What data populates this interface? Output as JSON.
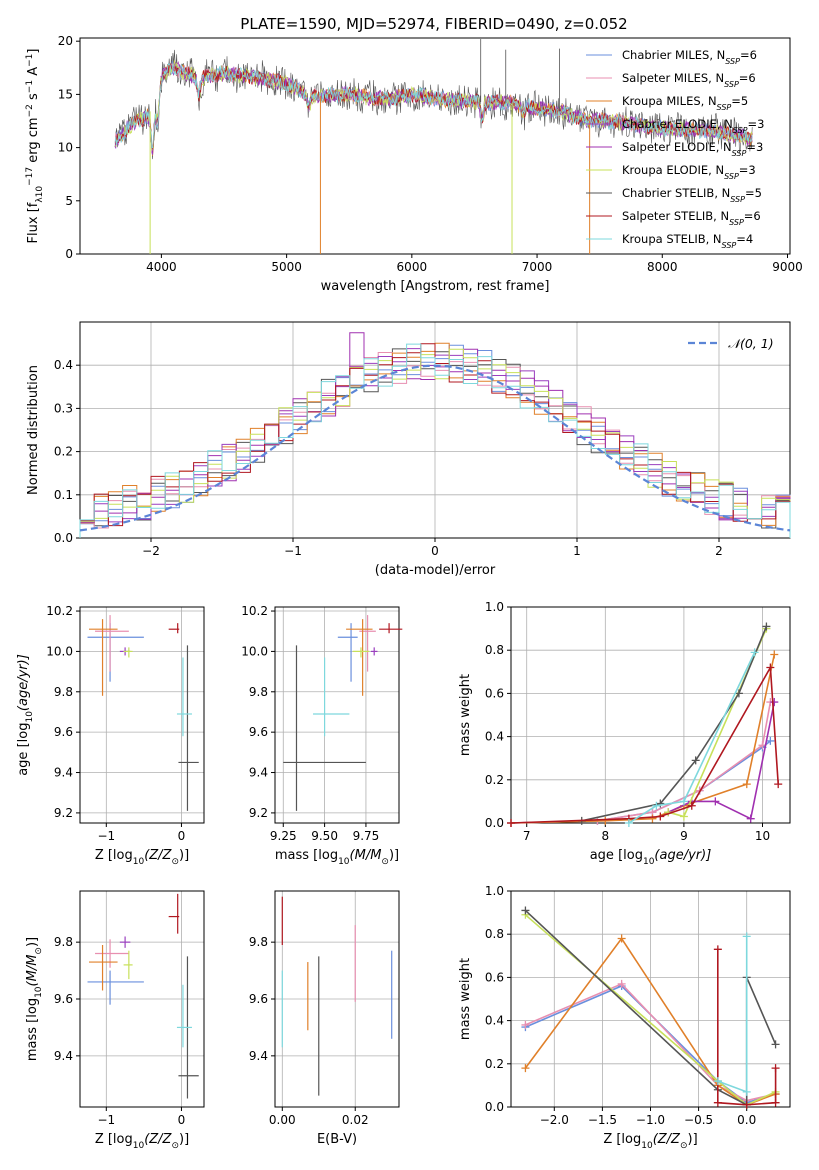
{
  "title": "PLATE=1590, MJD=52974, FIBERID=0490, z=0.052",
  "models": [
    {
      "name": "Chabrier MILES",
      "nssp": "6",
      "color": "#6a8fdd"
    },
    {
      "name": "Salpeter MILES",
      "nssp": "6",
      "color": "#e88fb0"
    },
    {
      "name": "Kroupa MILES",
      "nssp": "5",
      "color": "#e0802a"
    },
    {
      "name": "Chabrier ELODIE",
      "nssp": "3",
      "color": "#9a3fbf"
    },
    {
      "name": "Salpeter ELODIE",
      "nssp": "3",
      "color": "#a030b0"
    },
    {
      "name": "Kroupa ELODIE",
      "nssp": "3",
      "color": "#c7e05a"
    },
    {
      "name": "Chabrier STELIB",
      "nssp": "5",
      "color": "#555555"
    },
    {
      "name": "Salpeter STELIB",
      "nssp": "6",
      "color": "#b01820"
    },
    {
      "name": "Kroupa STELIB",
      "nssp": "4",
      "color": "#7ed8dd"
    }
  ],
  "chart_data": [
    {
      "id": "spectrum",
      "type": "line",
      "xlabel": "wavelength [Angstrom, rest frame]",
      "ylabel_parts": [
        "Flux [f",
        "λ",
        "10",
        "−17",
        " erg cm",
        "−2",
        " s",
        "−1",
        " A",
        "−1",
        "]"
      ],
      "xlim": [
        3350,
        9020
      ],
      "ylim": [
        0,
        20.3
      ],
      "xticks": [
        4000,
        5000,
        6000,
        7000,
        8000,
        9000
      ],
      "yticks": [
        0,
        5,
        10,
        15,
        20
      ],
      "x_range": [
        3630,
        8720
      ],
      "continuum": [
        [
          3630,
          10.5
        ],
        [
          3700,
          11.5
        ],
        [
          3800,
          12.5
        ],
        [
          3900,
          13
        ],
        [
          3950,
          15
        ],
        [
          4000,
          16.8
        ],
        [
          4100,
          17.5
        ],
        [
          4300,
          16.5
        ],
        [
          4500,
          17
        ],
        [
          4800,
          16.5
        ],
        [
          5000,
          16
        ],
        [
          5200,
          14.8
        ],
        [
          5500,
          15
        ],
        [
          5800,
          14.5
        ],
        [
          6000,
          15
        ],
        [
          6300,
          14.5
        ],
        [
          6500,
          14.3
        ],
        [
          6800,
          14.2
        ],
        [
          7000,
          13.7
        ],
        [
          7200,
          13.4
        ],
        [
          7400,
          12.5
        ],
        [
          7500,
          12.6
        ],
        [
          7700,
          12.3
        ],
        [
          8000,
          11.8
        ],
        [
          8200,
          11.7
        ],
        [
          8400,
          11.6
        ],
        [
          8720,
          10.8
        ]
      ],
      "absorption_lines": [
        [
          3930,
          4.5
        ],
        [
          3970,
          3.2
        ],
        [
          4300,
          1.5
        ],
        [
          5175,
          1.2
        ],
        [
          6560,
          1.5
        ],
        [
          6890,
          0.8
        ]
      ],
      "spikes_down": [
        {
          "x": 3910,
          "y": 0,
          "model": 5
        },
        {
          "x": 5270,
          "y": 0,
          "model": 2
        },
        {
          "x": 6800,
          "y": 0,
          "model": 5
        },
        {
          "x": 7420,
          "y": 0,
          "model": 2
        }
      ],
      "spikes_up": [
        {
          "x": 6550,
          "y": 20.2,
          "model": 6
        },
        {
          "x": 6750,
          "y": 19.2,
          "model": 6
        },
        {
          "x": 7180,
          "y": 19.3,
          "model": 6
        }
      ]
    },
    {
      "id": "residuals",
      "type": "histogram",
      "xlabel": "(data-model)/error",
      "ylabel": "Normed distribution",
      "xlim": [
        -2.5,
        2.5
      ],
      "ylim": [
        0,
        0.5
      ],
      "xticks": [
        -2,
        -1,
        0,
        1,
        2
      ],
      "yticks": [
        0.0,
        0.1,
        0.2,
        0.3,
        0.4
      ],
      "bins": {
        "start": -2.5,
        "width": 0.1,
        "count": 50
      },
      "spread": 1.05,
      "legend": "𝒩(0, 1)"
    },
    {
      "id": "age_vs_Z",
      "type": "errorbar",
      "xlabel_parts": [
        "Z [log",
        "10",
        "(Z/Z",
        "⊙",
        ")]"
      ],
      "ylabel_parts": [
        "age  [log",
        "10",
        "(age/yr)]"
      ],
      "xlim": [
        -1.35,
        0.3
      ],
      "ylim": [
        9.15,
        10.22
      ],
      "xticks": [
        -1,
        0
      ],
      "yticks": [
        9.2,
        9.4,
        9.6,
        9.8,
        10.0,
        10.2
      ],
      "points": [
        {
          "model": 0,
          "x": -0.95,
          "xerr": [
            0.3,
            0.45
          ],
          "y": 10.07,
          "yerr": [
            0.22,
            0.07
          ]
        },
        {
          "model": 1,
          "x": -0.95,
          "xerr": [
            0.2,
            0.25
          ],
          "y": 10.1,
          "yerr": [
            0.2,
            0.08
          ]
        },
        {
          "model": 2,
          "x": -1.05,
          "xerr": [
            0.18,
            0.2
          ],
          "y": 10.11,
          "yerr": [
            0.33,
            0.05
          ]
        },
        {
          "model": 3,
          "x": -0.75,
          "xerr": [
            0.07,
            0.07
          ],
          "y": 10.0,
          "yerr": [
            0.02,
            0.02
          ]
        },
        {
          "model": 5,
          "x": -0.7,
          "xerr": [
            0.07,
            0.05
          ],
          "y": 10.0,
          "yerr": [
            0.03,
            0.02
          ]
        },
        {
          "model": 6,
          "x": 0.08,
          "xerr": [
            0.12,
            0.15
          ],
          "y": 9.45,
          "yerr": [
            0.24,
            0.58
          ]
        },
        {
          "model": 7,
          "x": -0.05,
          "xerr": [
            0.12,
            0.02
          ],
          "y": 10.11,
          "yerr": [
            0.02,
            0.03
          ]
        },
        {
          "model": 8,
          "x": 0.02,
          "xerr": [
            0.08,
            0.12
          ],
          "y": 9.69,
          "yerr": [
            0.11,
            0.28
          ]
        }
      ]
    },
    {
      "id": "age_vs_mass",
      "type": "errorbar",
      "xlabel_parts": [
        "mass [log",
        "10",
        "(M/M",
        "⊙",
        ")]"
      ],
      "xlim": [
        9.2,
        9.95
      ],
      "ylim": [
        9.15,
        10.22
      ],
      "xticks": [
        9.25,
        9.5,
        9.75
      ],
      "xticklabels": [
        "9.25",
        "9.50",
        "9.75"
      ],
      "yticks": [
        9.2,
        9.4,
        9.6,
        9.8,
        10.0,
        10.2
      ],
      "points": [
        {
          "model": 0,
          "x": 9.66,
          "xerr": [
            0.08,
            0.04
          ],
          "y": 10.07,
          "yerr": [
            0.22,
            0.07
          ]
        },
        {
          "model": 1,
          "x": 9.76,
          "xerr": [
            0.05,
            0.05
          ],
          "y": 10.1,
          "yerr": [
            0.2,
            0.08
          ]
        },
        {
          "model": 2,
          "x": 9.73,
          "xerr": [
            0.1,
            0.06
          ],
          "y": 10.11,
          "yerr": [
            0.33,
            0.05
          ]
        },
        {
          "model": 3,
          "x": 9.8,
          "xerr": [
            0.02,
            0.02
          ],
          "y": 10.0,
          "yerr": [
            0.02,
            0.02
          ]
        },
        {
          "model": 5,
          "x": 9.72,
          "xerr": [
            0.05,
            0.05
          ],
          "y": 10.0,
          "yerr": [
            0.03,
            0.02
          ]
        },
        {
          "model": 6,
          "x": 9.33,
          "xerr": [
            0.08,
            0.42
          ],
          "y": 9.45,
          "yerr": [
            0.24,
            0.58
          ]
        },
        {
          "model": 7,
          "x": 9.89,
          "xerr": [
            0.06,
            0.08
          ],
          "y": 10.11,
          "yerr": [
            0.02,
            0.03
          ]
        },
        {
          "model": 8,
          "x": 9.5,
          "xerr": [
            0.07,
            0.15
          ],
          "y": 9.69,
          "yerr": [
            0.11,
            0.28
          ]
        }
      ]
    },
    {
      "id": "mass_weight_vs_age",
      "type": "line",
      "xlabel_parts": [
        "age  [log",
        "10",
        "(age/yr)]"
      ],
      "ylabel": "mass weight",
      "xlim": [
        6.8,
        10.35
      ],
      "ylim": [
        0,
        1.0
      ],
      "xticks": [
        7,
        8,
        9,
        10
      ],
      "yticks": [
        0.0,
        0.2,
        0.4,
        0.6,
        0.8,
        1.0
      ],
      "series": [
        {
          "model": 0,
          "x": [
            6.8,
            7.9,
            8.6,
            9.2,
            10.0,
            10.1
          ],
          "y": [
            0.0,
            0.01,
            0.05,
            0.15,
            0.35,
            0.38
          ]
        },
        {
          "model": 1,
          "x": [
            6.8,
            7.9,
            8.6,
            9.2,
            10.0,
            10.1
          ],
          "y": [
            0.0,
            0.01,
            0.05,
            0.15,
            0.36,
            0.56
          ]
        },
        {
          "model": 2,
          "x": [
            6.8,
            8.0,
            8.6,
            9.0,
            9.8,
            10.15
          ],
          "y": [
            0.0,
            0.01,
            0.02,
            0.08,
            0.18,
            0.78
          ]
        },
        {
          "model": 4,
          "x": [
            8.8,
            9.1,
            9.4,
            9.85,
            10.15
          ],
          "y": [
            0.05,
            0.1,
            0.1,
            0.02,
            0.56
          ]
        },
        {
          "model": 5,
          "x": [
            8.8,
            9.0,
            10.05
          ],
          "y": [
            0.05,
            0.03,
            0.9
          ]
        },
        {
          "model": 6,
          "x": [
            7.7,
            8.7,
            9.15,
            9.7,
            10.05
          ],
          "y": [
            0.01,
            0.09,
            0.29,
            0.6,
            0.91
          ]
        },
        {
          "model": 7,
          "x": [
            6.8,
            8.3,
            8.7,
            9.1,
            10.1,
            10.2
          ],
          "y": [
            0.0,
            0.02,
            0.03,
            0.08,
            0.72,
            0.18
          ]
        },
        {
          "model": 8,
          "x": [
            8.3,
            8.65,
            9.0,
            9.9
          ],
          "y": [
            0.0,
            0.08,
            0.1,
            0.79
          ]
        }
      ]
    },
    {
      "id": "mass_vs_Z",
      "type": "errorbar",
      "xlabel_parts": [
        "Z [log",
        "10",
        "(Z/Z",
        "⊙",
        ")]"
      ],
      "ylabel_parts": [
        "mass [log",
        "10",
        "(M/M",
        "⊙",
        ")]"
      ],
      "xlim": [
        -1.35,
        0.3
      ],
      "ylim": [
        9.22,
        9.98
      ],
      "xticks": [
        -1,
        0
      ],
      "yticks": [
        9.4,
        9.6,
        9.8
      ],
      "points": [
        {
          "model": 0,
          "x": -0.95,
          "xerr": [
            0.3,
            0.45
          ],
          "y": 9.66,
          "yerr": [
            0.08,
            0.04
          ]
        },
        {
          "model": 1,
          "x": -0.95,
          "xerr": [
            0.2,
            0.25
          ],
          "y": 9.76,
          "yerr": [
            0.05,
            0.05
          ]
        },
        {
          "model": 2,
          "x": -1.05,
          "xerr": [
            0.18,
            0.2
          ],
          "y": 9.73,
          "yerr": [
            0.1,
            0.06
          ]
        },
        {
          "model": 3,
          "x": -0.75,
          "xerr": [
            0.07,
            0.07
          ],
          "y": 9.8,
          "yerr": [
            0.02,
            0.02
          ]
        },
        {
          "model": 5,
          "x": -0.7,
          "xerr": [
            0.07,
            0.05
          ],
          "y": 9.72,
          "yerr": [
            0.05,
            0.05
          ]
        },
        {
          "model": 6,
          "x": 0.08,
          "xerr": [
            0.12,
            0.15
          ],
          "y": 9.33,
          "yerr": [
            0.08,
            0.42
          ]
        },
        {
          "model": 7,
          "x": -0.05,
          "xerr": [
            0.12,
            0.02
          ],
          "y": 9.89,
          "yerr": [
            0.06,
            0.08
          ]
        },
        {
          "model": 8,
          "x": 0.02,
          "xerr": [
            0.08,
            0.12
          ],
          "y": 9.5,
          "yerr": [
            0.07,
            0.15
          ]
        }
      ]
    },
    {
      "id": "mass_vs_ebv",
      "type": "errorbar",
      "xlabel": "E(B-V)",
      "xlim": [
        -0.002,
        0.032
      ],
      "ylim": [
        9.22,
        9.98
      ],
      "xticks": [
        0.0,
        0.02
      ],
      "xticklabels": [
        "0.00",
        "0.02"
      ],
      "yticks": [
        9.4,
        9.6,
        9.8
      ],
      "points": [
        {
          "model": 0,
          "x": 0.03,
          "xerr": [
            0,
            0
          ],
          "y": 9.66,
          "yerr": [
            0.2,
            0.11
          ]
        },
        {
          "model": 1,
          "x": 0.02,
          "xerr": [
            0,
            0
          ],
          "y": 9.76,
          "yerr": [
            0.17,
            0.1
          ]
        },
        {
          "model": 2,
          "x": 0.007,
          "xerr": [
            0,
            0
          ],
          "y": 9.62,
          "yerr": [
            0.13,
            0.11
          ]
        },
        {
          "model": 6,
          "x": 0.01,
          "xerr": [
            0,
            0
          ],
          "y": 9.5,
          "yerr": [
            0.24,
            0.25
          ]
        },
        {
          "model": 7,
          "x": 0.0,
          "xerr": [
            0,
            0
          ],
          "y": 9.89,
          "yerr": [
            0.1,
            0.07
          ]
        },
        {
          "model": 8,
          "x": 0.0,
          "xerr": [
            0,
            0
          ],
          "y": 9.55,
          "yerr": [
            0.12,
            0.15
          ]
        }
      ]
    },
    {
      "id": "mass_weight_vs_Z",
      "type": "line",
      "xlabel_parts": [
        "Z [log",
        "10",
        "(Z/Z",
        "⊙",
        ")]"
      ],
      "ylabel": "mass weight",
      "xlim": [
        -2.45,
        0.45
      ],
      "ylim": [
        0,
        1.0
      ],
      "xticks": [
        -2.0,
        -1.5,
        -1.0,
        -0.5,
        0.0
      ],
      "xticklabels": [
        "−2.0",
        "−1.5",
        "−1.0",
        "−0.5",
        "0.0"
      ],
      "yticks": [
        0.0,
        0.2,
        0.4,
        0.6,
        0.8,
        1.0
      ],
      "series": [
        {
          "model": 0,
          "x": [
            -2.3,
            -1.3,
            -0.3,
            0.0,
            0.3
          ],
          "y": [
            0.37,
            0.56,
            0.12,
            0.02,
            0.06
          ]
        },
        {
          "model": 1,
          "x": [
            -2.3,
            -1.3,
            -0.3,
            0.0,
            0.3
          ],
          "y": [
            0.38,
            0.57,
            0.1,
            0.03,
            0.06
          ]
        },
        {
          "model": 2,
          "x": [
            -2.3,
            -1.3,
            -0.3,
            0.0,
            0.3
          ],
          "y": [
            0.18,
            0.78,
            0.1,
            0.01,
            0.06
          ]
        },
        {
          "model": 5,
          "x": [
            -2.3,
            -0.3,
            0.0,
            0.3
          ],
          "y": [
            0.89,
            0.12,
            0.01,
            0.07
          ]
        },
        {
          "model": 6,
          "x": [
            -2.3,
            -0.3,
            0.0,
            0.0,
            0.3
          ],
          "y": [
            0.91,
            0.08,
            0.01,
            0.6,
            0.29
          ]
        },
        {
          "model": 7,
          "x": [
            -0.3,
            -0.3,
            0.0,
            0.3,
            0.3
          ],
          "y": [
            0.73,
            0.02,
            0.01,
            0.02,
            0.18
          ]
        },
        {
          "model": 8,
          "x": [
            -0.3,
            0.0,
            0.0
          ],
          "y": [
            0.12,
            0.07,
            0.79
          ]
        }
      ]
    }
  ]
}
